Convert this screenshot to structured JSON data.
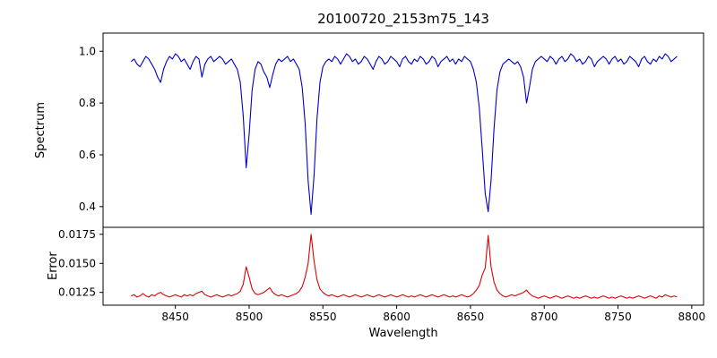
{
  "chart_data": {
    "type": "line",
    "title": "20100720_2153m75_143",
    "xlabel": "Wavelength",
    "x_start": 8420,
    "x_step": 2,
    "xlim": [
      8401,
      8808
    ],
    "x_ticks": [
      8450,
      8500,
      8550,
      8600,
      8650,
      8700,
      8750,
      8800
    ],
    "x_tick_labels": [
      "8450",
      "8500",
      "8550",
      "8600",
      "8650",
      "8700",
      "8750",
      "8800"
    ],
    "grid": false,
    "legend": "none",
    "subplots": [
      {
        "name": "spectrum",
        "ylabel": "Spectrum",
        "color": "#0000cd",
        "ylim": [
          0.32,
          1.07
        ],
        "y_ticks": [
          0.4,
          0.6,
          0.8,
          1.0
        ],
        "y_tick_labels": [
          "0.4",
          "0.6",
          "0.8",
          "1.0"
        ],
        "absorption_line_centers": [
          8498,
          8542,
          8662
        ],
        "values": [
          0.96,
          0.97,
          0.95,
          0.94,
          0.96,
          0.98,
          0.97,
          0.95,
          0.93,
          0.9,
          0.88,
          0.93,
          0.96,
          0.98,
          0.97,
          0.99,
          0.98,
          0.96,
          0.97,
          0.95,
          0.93,
          0.96,
          0.98,
          0.97,
          0.9,
          0.95,
          0.97,
          0.98,
          0.96,
          0.97,
          0.98,
          0.97,
          0.95,
          0.96,
          0.97,
          0.95,
          0.93,
          0.88,
          0.75,
          0.55,
          0.68,
          0.85,
          0.93,
          0.96,
          0.95,
          0.92,
          0.9,
          0.86,
          0.91,
          0.95,
          0.97,
          0.96,
          0.97,
          0.98,
          0.96,
          0.97,
          0.95,
          0.93,
          0.86,
          0.72,
          0.5,
          0.37,
          0.52,
          0.74,
          0.88,
          0.94,
          0.96,
          0.97,
          0.96,
          0.98,
          0.97,
          0.95,
          0.97,
          0.99,
          0.98,
          0.96,
          0.97,
          0.95,
          0.96,
          0.98,
          0.97,
          0.95,
          0.93,
          0.96,
          0.98,
          0.97,
          0.95,
          0.96,
          0.98,
          0.97,
          0.96,
          0.94,
          0.97,
          0.98,
          0.96,
          0.95,
          0.97,
          0.96,
          0.98,
          0.97,
          0.95,
          0.96,
          0.98,
          0.97,
          0.94,
          0.96,
          0.97,
          0.98,
          0.96,
          0.97,
          0.95,
          0.97,
          0.96,
          0.98,
          0.97,
          0.96,
          0.93,
          0.88,
          0.78,
          0.62,
          0.45,
          0.38,
          0.5,
          0.7,
          0.85,
          0.92,
          0.95,
          0.96,
          0.97,
          0.96,
          0.95,
          0.96,
          0.94,
          0.9,
          0.8,
          0.86,
          0.93,
          0.96,
          0.97,
          0.98,
          0.97,
          0.96,
          0.98,
          0.97,
          0.95,
          0.97,
          0.98,
          0.96,
          0.97,
          0.99,
          0.98,
          0.96,
          0.97,
          0.95,
          0.96,
          0.98,
          0.97,
          0.94,
          0.96,
          0.97,
          0.98,
          0.97,
          0.95,
          0.97,
          0.98,
          0.96,
          0.97,
          0.95,
          0.96,
          0.98,
          0.97,
          0.96,
          0.94,
          0.97,
          0.98,
          0.96,
          0.95,
          0.97,
          0.96,
          0.98,
          0.97,
          0.99,
          0.98,
          0.96,
          0.97,
          0.98
        ]
      },
      {
        "name": "error",
        "ylabel": "Error",
        "color": "#dc0000",
        "ylim": [
          0.0114,
          0.0181
        ],
        "y_ticks": [
          0.0125,
          0.015,
          0.0175
        ],
        "y_tick_labels": [
          "0.0125",
          "0.0150",
          "0.0175"
        ],
        "peak_centers": [
          8498,
          8542,
          8662
        ],
        "values": [
          0.0122,
          0.0123,
          0.0121,
          0.0122,
          0.0124,
          0.0122,
          0.0121,
          0.0123,
          0.0122,
          0.0124,
          0.0125,
          0.0123,
          0.0122,
          0.0121,
          0.0122,
          0.0123,
          0.0122,
          0.0121,
          0.0123,
          0.0122,
          0.0123,
          0.0122,
          0.0124,
          0.0125,
          0.0126,
          0.0123,
          0.0122,
          0.0121,
          0.0122,
          0.0123,
          0.0122,
          0.0121,
          0.0122,
          0.0123,
          0.0122,
          0.0123,
          0.0124,
          0.0126,
          0.0132,
          0.0147,
          0.0138,
          0.0128,
          0.0124,
          0.0123,
          0.0124,
          0.0125,
          0.0127,
          0.0129,
          0.0125,
          0.0123,
          0.0122,
          0.0123,
          0.0122,
          0.0121,
          0.0122,
          0.0123,
          0.0124,
          0.0126,
          0.013,
          0.0138,
          0.015,
          0.0175,
          0.0152,
          0.0136,
          0.0128,
          0.0125,
          0.0123,
          0.0122,
          0.0123,
          0.0122,
          0.0121,
          0.0122,
          0.0123,
          0.0122,
          0.0121,
          0.0122,
          0.0123,
          0.0122,
          0.0121,
          0.0122,
          0.0123,
          0.0122,
          0.0121,
          0.0122,
          0.0123,
          0.0122,
          0.0121,
          0.0122,
          0.0123,
          0.0122,
          0.0121,
          0.0122,
          0.0123,
          0.0122,
          0.0121,
          0.0122,
          0.0121,
          0.0122,
          0.0123,
          0.0122,
          0.0121,
          0.0122,
          0.0123,
          0.0122,
          0.0121,
          0.0122,
          0.0123,
          0.0122,
          0.0121,
          0.0122,
          0.0121,
          0.0122,
          0.0123,
          0.0122,
          0.0121,
          0.0122,
          0.0124,
          0.0127,
          0.0131,
          0.014,
          0.0146,
          0.0174,
          0.0147,
          0.0134,
          0.0127,
          0.0124,
          0.0122,
          0.0121,
          0.0122,
          0.0123,
          0.0122,
          0.0123,
          0.0124,
          0.0125,
          0.0127,
          0.0124,
          0.0122,
          0.0121,
          0.012,
          0.0121,
          0.0122,
          0.0121,
          0.012,
          0.0121,
          0.0122,
          0.0121,
          0.012,
          0.0121,
          0.0122,
          0.0121,
          0.012,
          0.0121,
          0.012,
          0.0121,
          0.0122,
          0.0121,
          0.012,
          0.0121,
          0.012,
          0.0121,
          0.0122,
          0.0121,
          0.012,
          0.0121,
          0.012,
          0.0121,
          0.0122,
          0.0121,
          0.012,
          0.0121,
          0.012,
          0.0121,
          0.0122,
          0.0121,
          0.012,
          0.0121,
          0.0122,
          0.0121,
          0.012,
          0.0122,
          0.0121,
          0.0123,
          0.0122,
          0.0121,
          0.0122,
          0.0121
        ]
      }
    ]
  }
}
